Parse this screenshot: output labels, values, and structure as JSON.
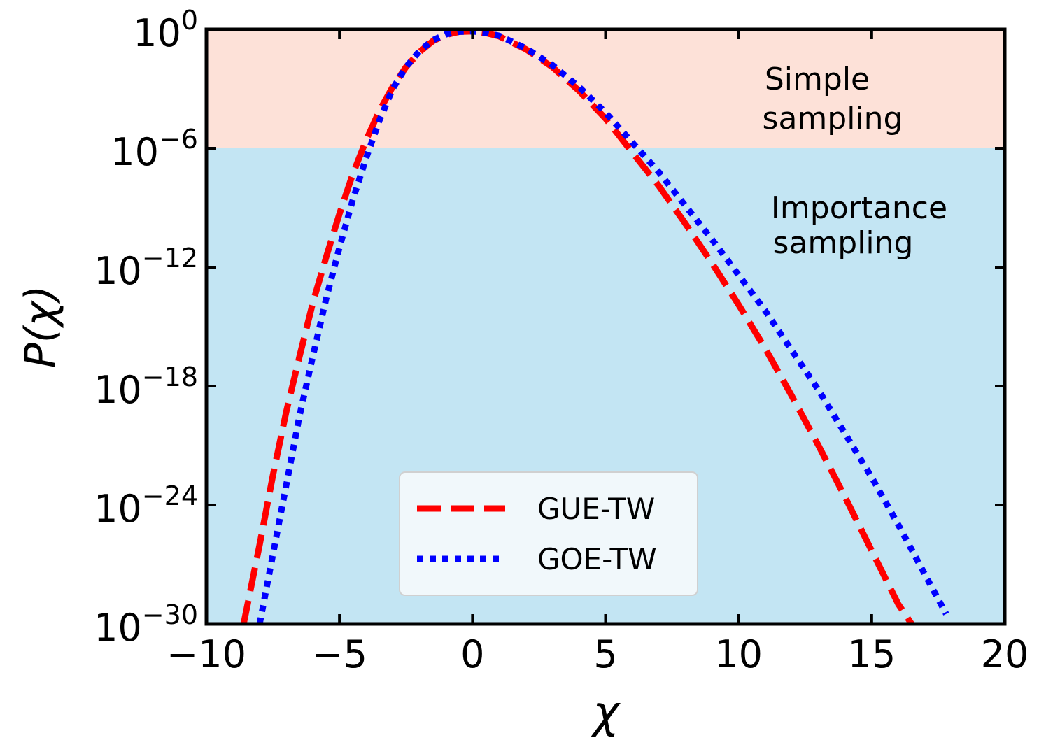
{
  "chart_data": {
    "type": "line",
    "title": "",
    "xlabel": "χ",
    "ylabel": "P(χ)",
    "xlim": [
      -10,
      20
    ],
    "ylim_log10": [
      -30,
      0
    ],
    "yscale": "log",
    "x_ticks": [
      -10,
      -5,
      0,
      5,
      10,
      15,
      20
    ],
    "x_tick_labels": [
      "−10",
      "−5",
      "0",
      "5",
      "10",
      "15",
      "20"
    ],
    "y_ticks_log10": [
      0,
      -6,
      -12,
      -18,
      -24,
      -30
    ],
    "y_tick_labels": [
      {
        "base": "10",
        "exp": "0"
      },
      {
        "base": "10",
        "exp": "−6"
      },
      {
        "base": "10",
        "exp": "−12"
      },
      {
        "base": "10",
        "exp": "−18"
      },
      {
        "base": "10",
        "exp": "−24"
      },
      {
        "base": "10",
        "exp": "−30"
      }
    ],
    "regions": [
      {
        "name": "simple-sampling",
        "from_log10": -6,
        "to_log10": 0,
        "color": "#fde1d8",
        "label_lines": [
          "Simple",
          "sampling"
        ]
      },
      {
        "name": "importance-sampling",
        "from_log10": -30,
        "to_log10": -6,
        "color": "#c3e5f3",
        "label_lines": [
          "Importance",
          "sampling"
        ]
      }
    ],
    "legend_position": "lower-center",
    "series": [
      {
        "name": "GUE-TW",
        "color": "#ff0000",
        "style": "dashed",
        "points_log10": [
          [
            -8.6,
            -30
          ],
          [
            -8.0,
            -26
          ],
          [
            -7.5,
            -22.5
          ],
          [
            -7.0,
            -19.3
          ],
          [
            -6.5,
            -16.5
          ],
          [
            -6.0,
            -13.8
          ],
          [
            -5.5,
            -11.5
          ],
          [
            -5.0,
            -9.3
          ],
          [
            -4.5,
            -7.3
          ],
          [
            -4.0,
            -5.6
          ],
          [
            -3.5,
            -4.1
          ],
          [
            -3.0,
            -2.9
          ],
          [
            -2.5,
            -1.9
          ],
          [
            -2.0,
            -1.15
          ],
          [
            -1.5,
            -0.6
          ],
          [
            -1.0,
            -0.28
          ],
          [
            -0.5,
            -0.12
          ],
          [
            0.0,
            -0.1
          ],
          [
            0.5,
            -0.18
          ],
          [
            1.0,
            -0.35
          ],
          [
            2.0,
            -1.0
          ],
          [
            3.0,
            -1.9
          ],
          [
            4.0,
            -3.1
          ],
          [
            5.0,
            -4.5
          ],
          [
            6.0,
            -6.2
          ],
          [
            7.0,
            -7.9
          ],
          [
            8.0,
            -9.8
          ],
          [
            9.0,
            -11.8
          ],
          [
            10.0,
            -13.9
          ],
          [
            11.0,
            -16.1
          ],
          [
            12.0,
            -18.5
          ],
          [
            13.0,
            -21.0
          ],
          [
            14.0,
            -23.6
          ],
          [
            15.0,
            -26.3
          ],
          [
            16.0,
            -29.0
          ],
          [
            16.5,
            -30
          ]
        ]
      },
      {
        "name": "GOE-TW",
        "color": "#0000ff",
        "style": "dotted",
        "points_log10": [
          [
            -8.0,
            -30
          ],
          [
            -7.5,
            -26.5
          ],
          [
            -7.0,
            -23
          ],
          [
            -6.5,
            -19.5
          ],
          [
            -6.0,
            -16.5
          ],
          [
            -5.5,
            -13.6
          ],
          [
            -5.0,
            -11.0
          ],
          [
            -4.5,
            -8.6
          ],
          [
            -4.0,
            -6.5
          ],
          [
            -3.5,
            -4.6
          ],
          [
            -3.0,
            -3.0
          ],
          [
            -2.5,
            -1.9
          ],
          [
            -2.0,
            -1.1
          ],
          [
            -1.5,
            -0.55
          ],
          [
            -1.0,
            -0.25
          ],
          [
            -0.5,
            -0.12
          ],
          [
            0.0,
            -0.1
          ],
          [
            0.5,
            -0.17
          ],
          [
            1.0,
            -0.32
          ],
          [
            2.0,
            -0.95
          ],
          [
            3.0,
            -1.8
          ],
          [
            4.0,
            -2.9
          ],
          [
            5.0,
            -4.2
          ],
          [
            6.0,
            -5.7
          ],
          [
            7.0,
            -7.2
          ],
          [
            8.0,
            -8.9
          ],
          [
            9.0,
            -10.6
          ],
          [
            10.0,
            -12.4
          ],
          [
            11.0,
            -14.2
          ],
          [
            12.0,
            -16.2
          ],
          [
            13.0,
            -18.2
          ],
          [
            14.0,
            -20.4
          ],
          [
            15.0,
            -22.6
          ],
          [
            16.0,
            -25.0
          ],
          [
            17.0,
            -27.5
          ],
          [
            17.8,
            -29.5
          ]
        ]
      }
    ]
  }
}
